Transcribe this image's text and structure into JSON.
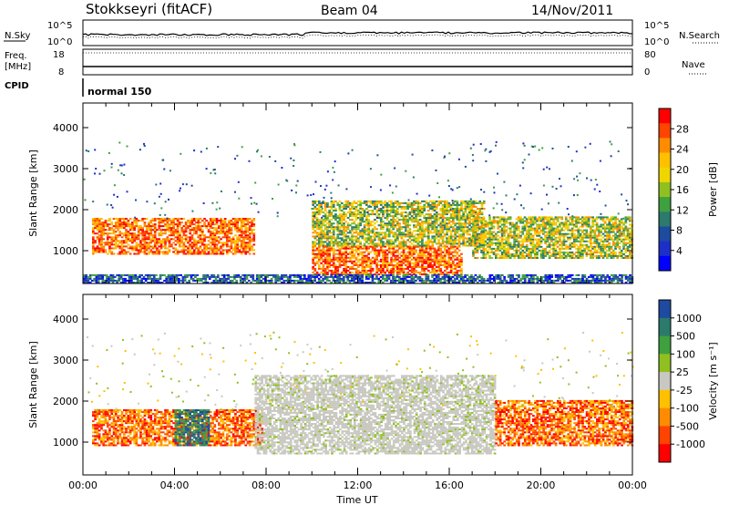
{
  "header": {
    "title": "Stokkseyri (fitACF)",
    "beam": "Beam 04",
    "date": "14/Nov/2011"
  },
  "top_panels": {
    "nsky": {
      "label": "N.Sky",
      "tick_top": "10^5",
      "tick_bottom": "10^0",
      "right_tick_top": "10^5",
      "right_tick_bottom": "10^0",
      "right_label": "N.Search"
    },
    "freq": {
      "label": "Freq.",
      "unit": "[MHz]",
      "tick_top": "18",
      "tick_bottom": "8",
      "right_tick_top": "80",
      "right_tick_bottom": "0",
      "right_label": "Nave"
    },
    "cpid": {
      "label": "CPID",
      "value": "normal 150"
    }
  },
  "chart_data": [
    {
      "type": "heatmap",
      "panel": "power",
      "ylabel": "Slant Range [km]",
      "xlabel": "Time UT",
      "y_ticks": [
        1000,
        2000,
        3000,
        4000
      ],
      "ylim": [
        200,
        4600
      ],
      "x_ticks": [
        "00:00",
        "04:00",
        "08:00",
        "12:00",
        "16:00",
        "20:00",
        "00:00"
      ],
      "colorbar": {
        "label": "Power [dB]",
        "ticks": [
          "28",
          "24",
          "20",
          "16",
          "12",
          "8",
          "4"
        ],
        "colors": [
          "#ff0000",
          "#ff4400",
          "#ff8c00",
          "#ffc000",
          "#f0d600",
          "#90c020",
          "#3fa040",
          "#2c7a6c",
          "#1e4ba0",
          "#1e2fc8",
          "#0000ff"
        ]
      },
      "regions": [
        {
          "t": [
            0.4,
            7.5
          ],
          "r": [
            900,
            1800
          ],
          "level": "high"
        },
        {
          "t": [
            10.0,
            16.5
          ],
          "r": [
            400,
            1100
          ],
          "level": "high"
        },
        {
          "t": [
            10.0,
            17.5
          ],
          "r": [
            1100,
            2200
          ],
          "level": "mid"
        },
        {
          "t": [
            17.0,
            24.0
          ],
          "r": [
            800,
            1800
          ],
          "level": "mid"
        },
        {
          "t": [
            0.0,
            24.0
          ],
          "r": [
            200,
            400
          ],
          "level": "low"
        }
      ]
    },
    {
      "type": "heatmap",
      "panel": "velocity",
      "ylabel": "Slant Range [km]",
      "xlabel": "Time UT",
      "y_ticks": [
        1000,
        2000,
        3000,
        4000
      ],
      "ylim": [
        200,
        4600
      ],
      "x_ticks": [
        "00:00",
        "04:00",
        "08:00",
        "12:00",
        "16:00",
        "20:00",
        "00:00"
      ],
      "colorbar": {
        "label": "Velocity [m s⁻¹]",
        "ticks": [
          "1000",
          "500",
          "100",
          "25",
          "-25",
          "-100",
          "-500",
          "-1000"
        ],
        "colors": [
          "#1e4ba0",
          "#2c7a6c",
          "#3fa040",
          "#90c020",
          "#c8c8c0",
          "#ffc000",
          "#ff8c00",
          "#ff4400",
          "#ff0000"
        ]
      },
      "regions": [
        {
          "t": [
            0.4,
            7.8
          ],
          "r": [
            900,
            1800
          ],
          "level": "negative"
        },
        {
          "t": [
            4.0,
            5.5
          ],
          "r": [
            900,
            1800
          ],
          "level": "positive"
        },
        {
          "t": [
            7.5,
            18.0
          ],
          "r": [
            700,
            2600
          ],
          "level": "ground"
        },
        {
          "t": [
            18.0,
            24.0
          ],
          "r": [
            900,
            2000
          ],
          "level": "negative"
        }
      ]
    }
  ]
}
